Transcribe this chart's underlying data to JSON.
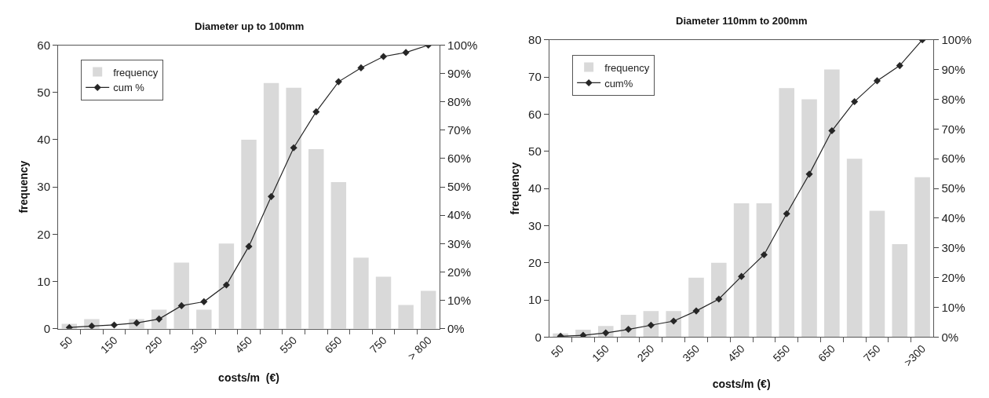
{
  "chart_data": [
    {
      "type": "bar",
      "title": "Diameter up to 100mm",
      "xlabel": "costs/m  (€)",
      "ylabel": "frequency",
      "categories": [
        "50",
        null,
        "150",
        null,
        "250",
        null,
        "350",
        null,
        "450",
        null,
        "550",
        null,
        "650",
        null,
        "750",
        null,
        "> 800"
      ],
      "series": [
        {
          "name": "frequency",
          "color": "#d9d9d9",
          "values": [
            1,
            2,
            null,
            2,
            4,
            14,
            4,
            18,
            40,
            52,
            51,
            38,
            31,
            15,
            11,
            5,
            8
          ]
        },
        {
          "name": "cum %",
          "type": "line",
          "axis": "y2",
          "color": "#262626",
          "marker": "diamond",
          "values": [
            0.4,
            0.9,
            1.3,
            2,
            3.4,
            8.1,
            9.5,
            15.4,
            29,
            46.6,
            63.8,
            76.5,
            87.1,
            92,
            96,
            97.4,
            100
          ]
        }
      ],
      "ylim": [
        0,
        60
      ],
      "yticks": [
        0,
        10,
        20,
        30,
        40,
        50,
        60
      ],
      "y2lim": [
        0,
        100
      ],
      "y2ticks": [
        {
          "value": 0,
          "label": "0%"
        },
        {
          "value": 10,
          "label": "10%"
        },
        {
          "value": 20,
          "label": "20%"
        },
        {
          "value": 30,
          "label": "30%"
        },
        {
          "value": 40,
          "label": "40%"
        },
        {
          "value": 50,
          "label": "50%"
        },
        {
          "value": 60,
          "label": "60%"
        },
        {
          "value": 70,
          "label": "70%"
        },
        {
          "value": 80,
          "label": "80%"
        },
        {
          "value": 90,
          "label": "90%"
        },
        {
          "value": 100,
          "label": "100%"
        }
      ],
      "legend": "top left"
    },
    {
      "type": "bar",
      "title": "Diameter 110mm to 200mm",
      "xlabel": "costs/m (€)",
      "ylabel": "frequency",
      "categories": [
        "50",
        null,
        "150",
        null,
        "250",
        null,
        "350",
        null,
        "450",
        null,
        "550",
        null,
        "650",
        null,
        "750",
        null,
        ">300"
      ],
      "series": [
        {
          "name": "frequency",
          "color": "#d9d9d9",
          "values": [
            1,
            2,
            3,
            6,
            7,
            7,
            16,
            20,
            36,
            36,
            67,
            64,
            72,
            48,
            34,
            25,
            43
          ]
        },
        {
          "name": "cum%",
          "type": "line",
          "axis": "y2",
          "color": "#262626",
          "marker": "diamond",
          "values": [
            0.3,
            0.6,
            1.4,
            2.6,
            4,
            5.4,
            8.8,
            12.8,
            20.4,
            27.7,
            41.5,
            54.8,
            69.4,
            79.2,
            86.2,
            91.3,
            100
          ]
        }
      ],
      "ylim": [
        0,
        80
      ],
      "yticks": [
        0,
        10,
        20,
        30,
        40,
        50,
        60,
        70,
        80
      ],
      "y2lim": [
        0,
        100
      ],
      "y2ticks": [
        {
          "value": 0,
          "label": "0%"
        },
        {
          "value": 10,
          "label": "10%"
        },
        {
          "value": 20,
          "label": "20%"
        },
        {
          "value": 30,
          "label": "30%"
        },
        {
          "value": 40,
          "label": "40%"
        },
        {
          "value": 50,
          "label": "50%"
        },
        {
          "value": 60,
          "label": "60%"
        },
        {
          "value": 70,
          "label": "70%"
        },
        {
          "value": 80,
          "label": "80%"
        },
        {
          "value": 90,
          "label": "90%"
        },
        {
          "value": 100,
          "label": "100%"
        }
      ],
      "legend": "top left"
    }
  ]
}
